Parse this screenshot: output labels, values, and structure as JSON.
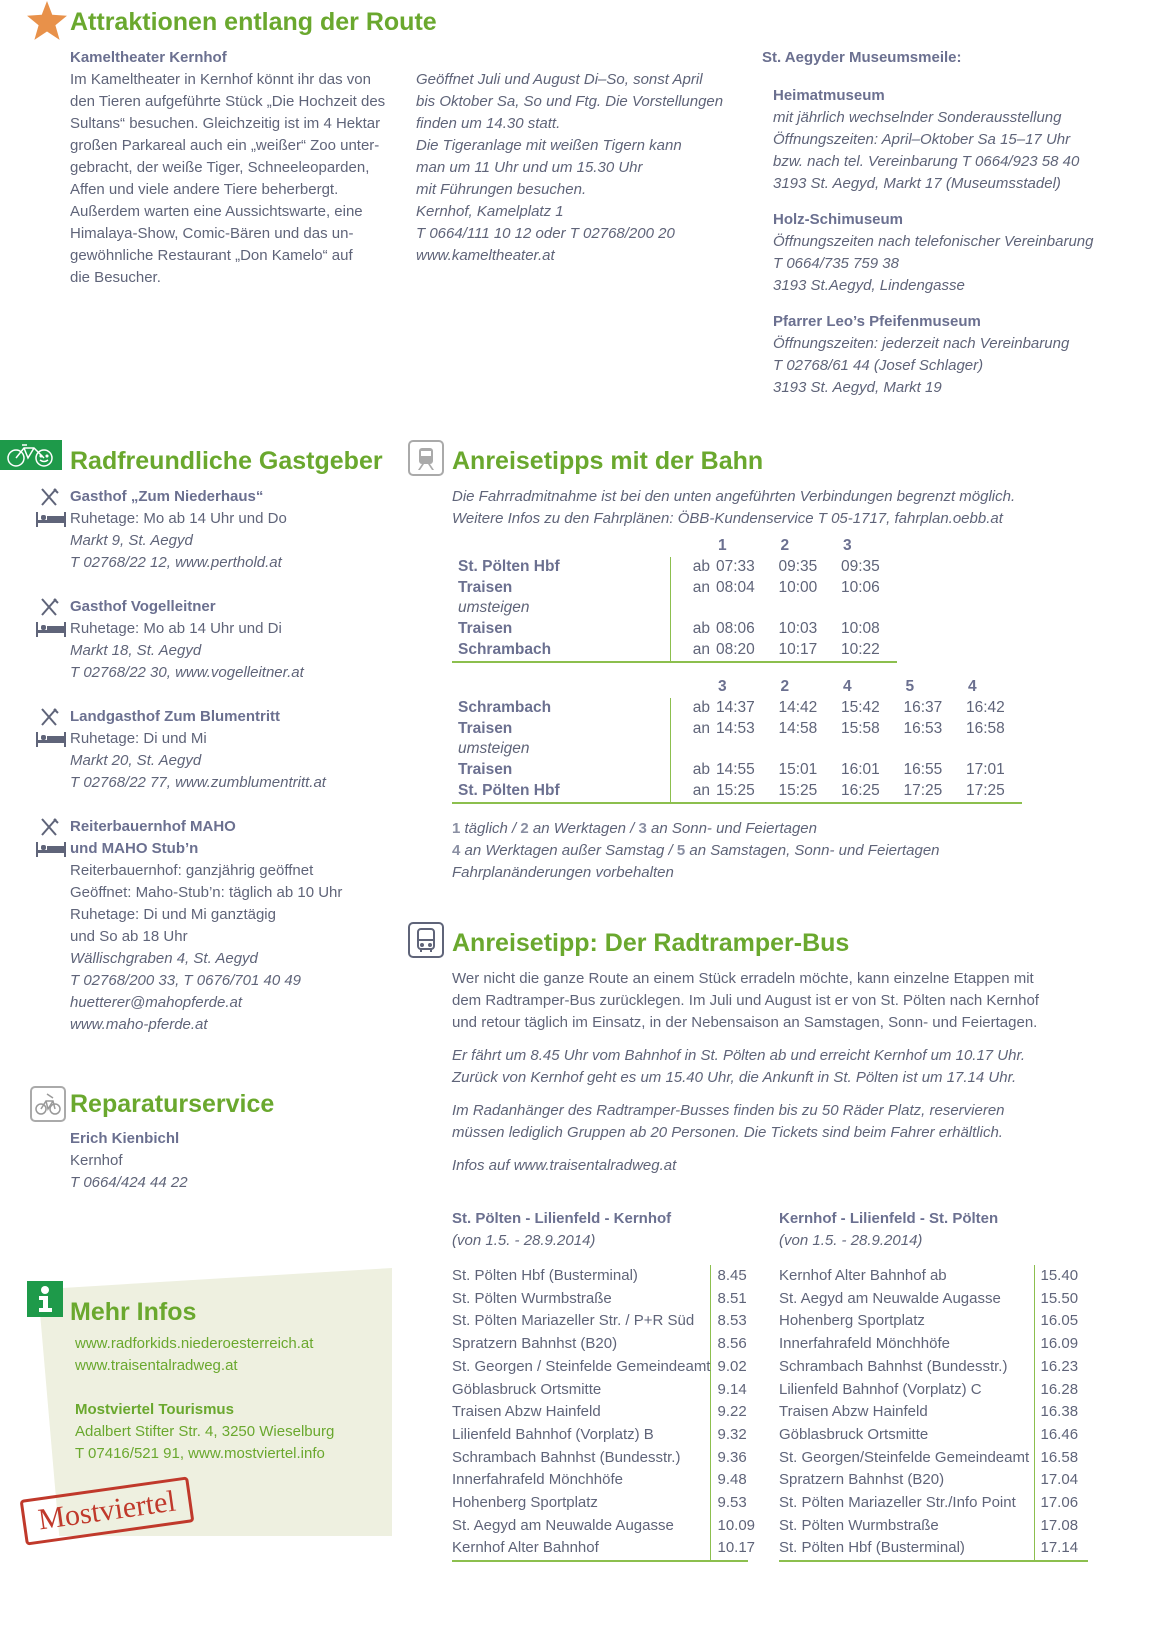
{
  "attractions": {
    "title": "Attraktionen entlang der Route",
    "kameltheater": {
      "name": "Kameltheater Kernhof",
      "description": [
        "Im Kameltheater in Kernhof könnt ihr das von",
        "den Tieren aufgeführte Stück „Die Hochzeit des",
        "Sultans“ besuchen. Gleichzeitig ist im 4 Hektar",
        "großen Parkareal auch ein „weißer“ Zoo unter-",
        "gebracht, der weiße Tiger, Schneeleoparden,",
        "Affen und viele andere Tiere beherbergt.",
        "Außerdem warten eine Aussichtswarte, eine",
        "Himalaya-Show, Comic-Bären und das un-",
        "gewöhnliche Restaurant „Don Kamelo“ auf",
        "die Besucher."
      ],
      "details": [
        "Geöffnet Juli und August Di–So, sonst April",
        "bis Oktober Sa, So und Ftg. Die Vorstellungen",
        "finden um 14.30 statt.",
        "Die Tigeranlage mit weißen Tigern kann",
        "man um 11 Uhr und um 15.30 Uhr",
        "mit Führungen besuchen.",
        "Kernhof, Kamelplatz 1",
        "T 0664/111 10 12 oder T 02768/200 20",
        "www.kameltheater.at"
      ]
    },
    "museums": {
      "title": "St. Aegyder Museumsmeile:",
      "items": [
        {
          "name": "Heimatmuseum",
          "lines": [
            "mit jährlich wechselnder Sonderausstellung",
            "Öffnungszeiten: April–Oktober Sa 15–17 Uhr",
            "bzw. nach tel. Vereinbarung T 0664/923 58 40",
            "3193 St. Aegyd, Markt 17 (Museumsstadel)"
          ]
        },
        {
          "name": "Holz-Schimuseum",
          "lines": [
            "Öffnungszeiten nach telefonischer Vereinbarung",
            "T 0664/735 759 38",
            "3193 St.Aegyd, Lindengasse"
          ]
        },
        {
          "name": "Pfarrer Leo’s Pfeifenmuseum",
          "lines": [
            "Öffnungszeiten: jederzeit nach Vereinbarung",
            "T 02768/61 44 (Josef Schlager)",
            "3193 St. Aegyd, Markt 19"
          ]
        }
      ]
    }
  },
  "hosts": {
    "title": "Radfreundliche Gastgeber",
    "items": [
      {
        "name": "Gasthof „Zum Niederhaus“",
        "lines": [
          "Ruhetage: Mo ab 14 Uhr und Do"
        ],
        "italic": [
          "Markt 9, St. Aegyd",
          "T 02768/22 12, www.perthold.at"
        ]
      },
      {
        "name": "Gasthof Vogelleitner",
        "lines": [
          "Ruhetage: Mo ab 14 Uhr und Di"
        ],
        "italic": [
          "Markt 18, St. Aegyd",
          "T 02768/22 30, www.vogelleitner.at"
        ]
      },
      {
        "name": "Landgasthof Zum Blumentritt",
        "lines": [
          "Ruhetage: Di und Mi"
        ],
        "italic": [
          "Markt 20, St. Aegyd",
          "T 02768/22 77, www.zumblumentritt.at"
        ]
      },
      {
        "name": "Reiterbauernhof MAHO",
        "name2": "und MAHO Stub’n",
        "lines": [
          "Reiterbauernhof: ganzjährig geöffnet",
          "Geöffnet: Maho-Stub’n: täglich ab 10 Uhr",
          "Ruhetage: Di und Mi ganztägig",
          "und So ab 18 Uhr"
        ],
        "italic": [
          "Wällischgraben 4, St. Aegyd",
          "T 02768/200 33, T 0676/701 40 49",
          "huetterer@mahopferde.at",
          "www.maho-pferde.at"
        ]
      }
    ]
  },
  "repair": {
    "title": "Reparaturservice",
    "name": "Erich Kienbichl",
    "place": "Kernhof",
    "phone": "T 0664/424 44 22"
  },
  "info": {
    "title": "Mehr Infos",
    "links": [
      "www.radforkids.niederoesterreich.at",
      "www.traisentalradweg.at"
    ],
    "org": "Mostviertel Tourismus",
    "address": "Adalbert Stifter Str. 4, 3250 Wieselburg",
    "contact": "T 07416/521 91, www.mostviertel.info",
    "stamp": "Mostviertel"
  },
  "train": {
    "title": "Anreisetipps mit der Bahn",
    "intro": [
      "Die Fahrradmitnahme ist bei den unten angeführten Verbindungen begrenzt möglich.",
      "Weitere Infos zu den Fahrplänen: ÖBB-Kundenservice T 05-1717, fahrplan.oebb.at"
    ],
    "outbound": {
      "cols": [
        "1",
        "2",
        "3"
      ],
      "rows": [
        {
          "station": "St. Pölten Hbf",
          "type": "ab",
          "times": [
            "07:33",
            "09:35",
            "09:35"
          ]
        },
        {
          "station": "Traisen",
          "type": "an",
          "times": [
            "08:04",
            "10:00",
            "10:06"
          ]
        },
        {
          "station": "umsteigen",
          "italic": true,
          "type": "",
          "times": []
        },
        {
          "station": "Traisen",
          "type": "ab",
          "times": [
            "08:06",
            "10:03",
            "10:08"
          ]
        },
        {
          "station": "Schrambach",
          "type": "an",
          "times": [
            "08:20",
            "10:17",
            "10:22"
          ]
        }
      ]
    },
    "return": {
      "cols": [
        "3",
        "2",
        "4",
        "5",
        "4"
      ],
      "rows": [
        {
          "station": "Schrambach",
          "type": "ab",
          "times": [
            "14:37",
            "14:42",
            "15:42",
            "16:37",
            "16:42"
          ]
        },
        {
          "station": "Traisen",
          "type": "an",
          "times": [
            "14:53",
            "14:58",
            "15:58",
            "16:53",
            "16:58"
          ]
        },
        {
          "station": "umsteigen",
          "italic": true,
          "type": "",
          "times": []
        },
        {
          "station": "Traisen",
          "type": "ab",
          "times": [
            "14:55",
            "15:01",
            "16:01",
            "16:55",
            "17:01"
          ]
        },
        {
          "station": "St. Pölten Hbf",
          "type": "an",
          "times": [
            "15:25",
            "15:25",
            "16:25",
            "17:25",
            "17:25"
          ]
        }
      ]
    },
    "notes": [
      [
        {
          "n": "1",
          "t": " täglich / "
        },
        {
          "n": "2",
          "t": " an Werktagen / "
        },
        {
          "n": "3",
          "t": " an Sonn- und Feiertagen"
        }
      ],
      [
        {
          "n": "4",
          "t": " an Werktagen außer Samstag / "
        },
        {
          "n": "5",
          "t": " an Samstagen, Sonn- und Feiertagen"
        }
      ],
      [
        {
          "n": "",
          "t": "Fahrplanänderungen vorbehalten"
        }
      ]
    ]
  },
  "bus": {
    "title": "Anreisetipp: Der Radtramper-Bus",
    "para1": [
      "Wer nicht die ganze Route an einem Stück erradeln möchte, kann einzelne Etappen mit",
      "dem Radtramper-Bus zurücklegen. Im Juli und August ist er von St. Pölten nach Kernhof",
      "und retour täglich im Einsatz, in der Nebensaison an Samstagen, Sonn- und Feiertagen."
    ],
    "para2": [
      "Er fährt um 8.45 Uhr vom Bahnhof in St. Pölten ab und erreicht Kernhof um 10.17 Uhr.",
      "Zurück von Kernhof geht es um 15.40 Uhr, die Ankunft in St. Pölten ist um 17.14 Uhr."
    ],
    "para3": [
      "Im Radanhänger des Radtramper-Busses finden bis zu 50 Räder Platz, reservieren",
      "müssen lediglich Gruppen ab 20 Personen. Die Tickets sind beim Fahrer erhältlich."
    ],
    "para4": "Infos auf www.traisentalradweg.at",
    "tables": [
      {
        "title": "St. Pölten - Lilienfeld - Kernhof",
        "period": "(von 1.5. - 28.9.2014)",
        "rows": [
          [
            "St. Pölten Hbf (Busterminal)",
            "8.45"
          ],
          [
            "St. Pölten Wurmbstraße",
            "8.51"
          ],
          [
            "St. Pölten Mariazeller Str. / P+R Süd",
            "8.53"
          ],
          [
            "Spratzern Bahnhst (B20)",
            "8.56"
          ],
          [
            "St. Georgen / Steinfelde Gemeindeamt",
            "9.02"
          ],
          [
            "Göblasbruck Ortsmitte",
            "9.14"
          ],
          [
            "Traisen Abzw Hainfeld",
            "9.22"
          ],
          [
            "Lilienfeld Bahnhof (Vorplatz) B",
            "9.32"
          ],
          [
            "Schrambach Bahnhst (Bundesstr.)",
            "9.36"
          ],
          [
            "Innerfahrafeld Mönchhöfe",
            "9.48"
          ],
          [
            "Hohenberg Sportplatz",
            "9.53"
          ],
          [
            "St. Aegyd am Neuwalde Augasse",
            "10.09"
          ],
          [
            "Kernhof Alter Bahnhof",
            "10.17"
          ]
        ]
      },
      {
        "title": "Kernhof - Lilienfeld - St. Pölten",
        "period": "(von 1.5. - 28.9.2014)",
        "rows": [
          [
            "Kernhof Alter Bahnhof ab",
            "15.40"
          ],
          [
            "St. Aegyd am Neuwalde Augasse",
            "15.50"
          ],
          [
            "Hohenberg Sportplatz",
            "16.05"
          ],
          [
            "Innerfahrafeld Mönchhöfe",
            "16.09"
          ],
          [
            "Schrambach Bahnhst (Bundesstr.)",
            "16.23"
          ],
          [
            "Lilienfeld Bahnhof (Vorplatz) C",
            "16.28"
          ],
          [
            "Traisen Abzw Hainfeld",
            "16.38"
          ],
          [
            "Göblasbruck Ortsmitte",
            "16.46"
          ],
          [
            "St. Georgen/Steinfelde Gemeindeamt",
            "16.58"
          ],
          [
            "Spratzern Bahnhst (B20)",
            "17.04"
          ],
          [
            "St. Pölten Mariazeller Str./Info Point",
            "17.06"
          ],
          [
            "St. Pölten Wurmbstraße",
            "17.08"
          ],
          [
            "St. Pölten Hbf (Busterminal)",
            "17.14"
          ]
        ]
      }
    ]
  },
  "colors": {
    "heading": "#6aa82e",
    "text": "#5f6479",
    "icon_green": "#1e9a4a",
    "stamp": "#c0392b",
    "paper": "#eef0e0"
  }
}
